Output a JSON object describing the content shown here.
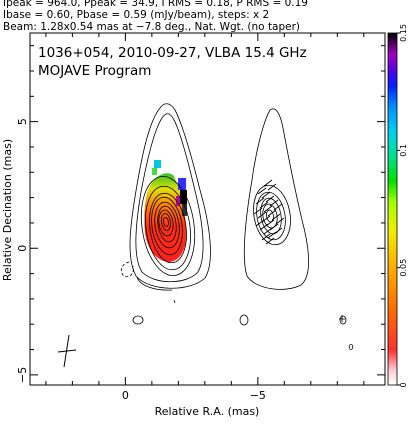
{
  "header": {
    "line1": "Ipeak = 964.0, Ppeak = 34.9, I RMS = 0.18, P RMS = 0.19",
    "line2": "Ibase = 0.60, Pbase = 0.59 (mJy/beam), steps: x 2",
    "line3": "Beam: 1.28x0.54 mas at −7.8 deg., Nat. Wgt. (no taper)"
  },
  "plot": {
    "title": "1036+054, 2010-09-27, VLBA 15.4 GHz",
    "subtitle": "MOJAVE Program"
  },
  "chart_data": {
    "type": "heatmap",
    "title": "1036+054, 2010-09-27, VLBA 15.4 GHz",
    "subtitle": "MOJAVE Program",
    "xlabel": "Relative R.A. (mas)",
    "ylabel": "Relative Decination (mas)",
    "xlim": [
      3.6,
      -9.8
    ],
    "ylim": [
      -5.4,
      8.5
    ],
    "x_ticks": [
      {
        "value": 0,
        "label": "0"
      },
      {
        "value": -5,
        "label": "−5"
      }
    ],
    "y_ticks": [
      {
        "value": -5,
        "label": "−5"
      },
      {
        "value": 0,
        "label": "0"
      },
      {
        "value": 5,
        "label": "5"
      }
    ],
    "colorbar": {
      "min": 0,
      "max": 0.15,
      "ticks": [
        {
          "value": 0,
          "label": "0"
        },
        {
          "value": 0.05,
          "label": "0.05"
        },
        {
          "value": 0.1,
          "label": "0.1"
        },
        {
          "value": 0.15,
          "label": "0.15"
        }
      ]
    },
    "grid": false,
    "colors": {
      "contour": "#000000",
      "background": "#ffffff"
    }
  }
}
